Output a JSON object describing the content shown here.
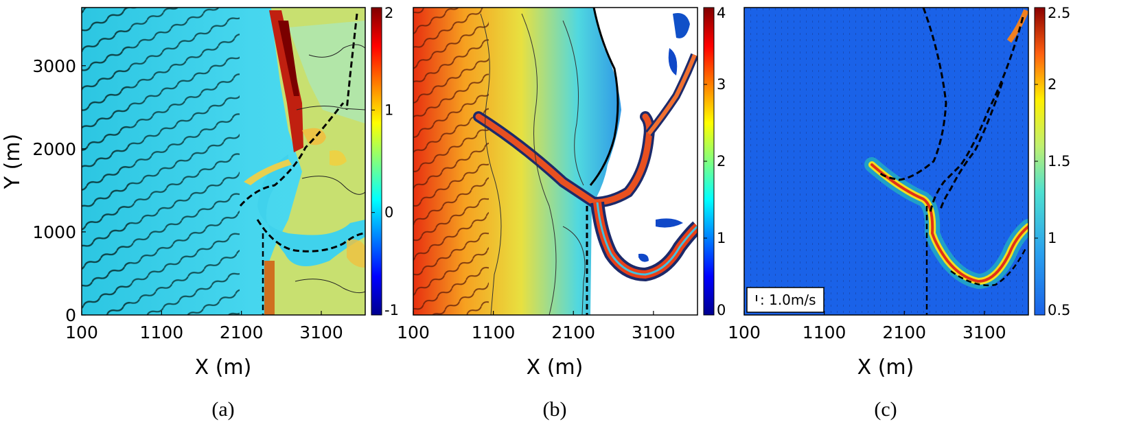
{
  "chart_data": [
    {
      "type": "heatmap",
      "panel_label": "(a)",
      "xlabel": "X (m)",
      "ylabel": "Y (m)",
      "xlim": [
        100,
        3650
      ],
      "ylim": [
        0,
        3700
      ],
      "xticks": [
        "100",
        "1100",
        "2100",
        "3100"
      ],
      "yticks": [
        "0",
        "1000",
        "2000",
        "3000"
      ],
      "colorbar": {
        "range": [
          -1,
          2
        ],
        "ticks": [
          "2",
          "1",
          "0",
          "-1"
        ]
      },
      "colormap": "jet",
      "features": [
        "wave crests offshore",
        "coastline at X≈2150-2500 m",
        "channel entrance near Y≈2000 m",
        "dashed channel outline"
      ]
    },
    {
      "type": "heatmap",
      "panel_label": "(b)",
      "xlabel": "X (m)",
      "ylabel": "",
      "xlim": [
        100,
        3650
      ],
      "ylim": [
        0,
        3700
      ],
      "xticks": [
        "100",
        "1100",
        "2100",
        "3100"
      ],
      "yticks": [],
      "colorbar": {
        "range": [
          0,
          4
        ],
        "ticks": [
          "4",
          "3",
          "2",
          "1",
          "0"
        ]
      },
      "colormap": "jet",
      "features": [
        "dry land shown white",
        "deep channel from X≈1000 m to X≈3600 m"
      ]
    },
    {
      "type": "heatmap",
      "panel_label": "(c)",
      "xlabel": "X (m)",
      "ylabel": "",
      "xlim": [
        100,
        3650
      ],
      "ylim": [
        0,
        3700
      ],
      "xticks": [
        "100",
        "1100",
        "2100",
        "3100"
      ],
      "yticks": [],
      "colorbar": {
        "range": [
          0.5,
          2.5
        ],
        "ticks": [
          "2.5",
          "2",
          "1.5",
          "1",
          "0.5"
        ]
      },
      "colormap": "jet",
      "vector_scale_label": ": 1.0m/s",
      "features": [
        "velocity vectors",
        "high speeds inside channel"
      ]
    }
  ],
  "colors": {
    "jet": [
      "#00008f",
      "#0000ff",
      "#0080ff",
      "#00ffff",
      "#80ff80",
      "#ffff00",
      "#ff8000",
      "#ff0000",
      "#800000"
    ],
    "panel_a_water": "#3cd0e8",
    "panel_a_land": "#c8e070",
    "panel_c_background": "#1a62e8"
  }
}
